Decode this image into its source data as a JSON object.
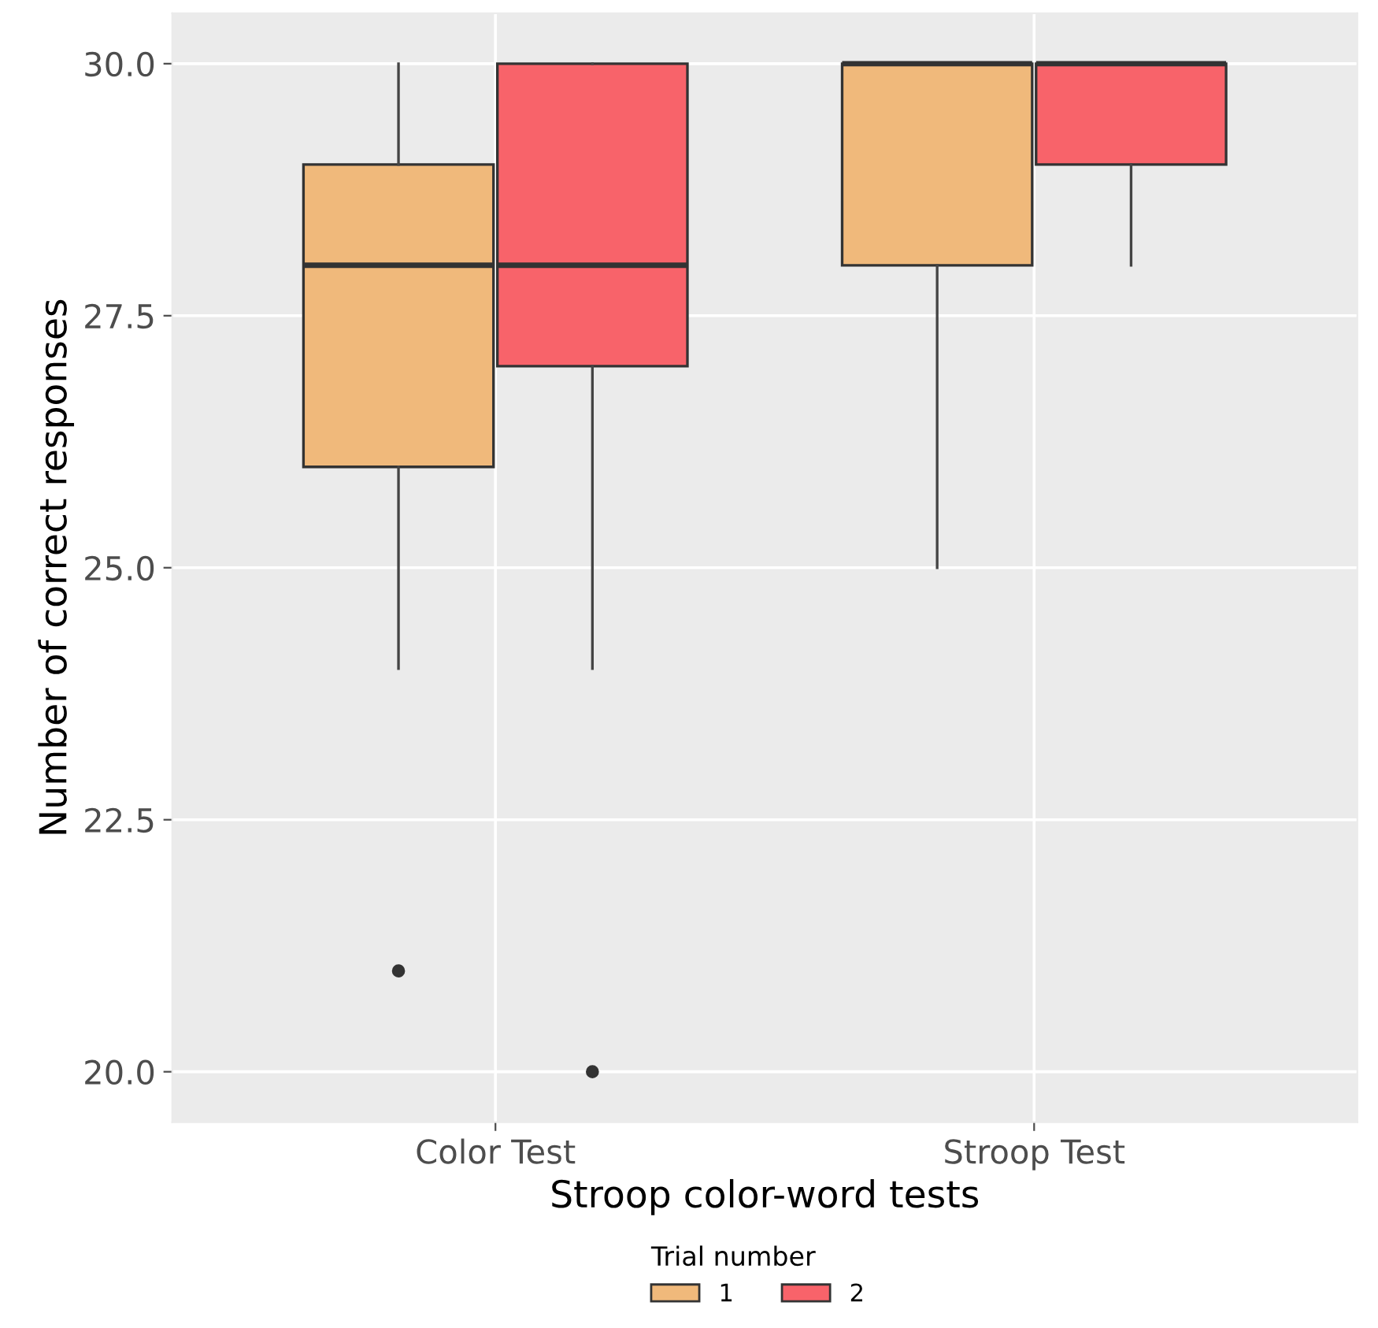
{
  "chart_data": {
    "type": "box",
    "xlabel": "Stroop color-word tests",
    "ylabel": "Number of correct responses",
    "legend_title": "Trial number",
    "categories": [
      "Color Test",
      "Stroop Test"
    ],
    "series": [
      {
        "name": "1",
        "color": "#f0b97b",
        "boxes": [
          {
            "low": 24,
            "q1": 26,
            "median": 28,
            "q3": 29,
            "high": 30,
            "outliers": [
              21
            ]
          },
          {
            "low": 25,
            "q1": 28,
            "median": 30,
            "q3": 30,
            "high": 30
          }
        ]
      },
      {
        "name": "2",
        "color": "#f8636a",
        "boxes": [
          {
            "low": 24,
            "q1": 27,
            "median": 28,
            "q3": 30,
            "high": 30,
            "outliers": [
              20
            ]
          },
          {
            "low": 28,
            "q1": 29,
            "median": 30,
            "q3": 30,
            "high": 30
          }
        ]
      }
    ],
    "ylim": [
      19.5,
      30.5
    ],
    "yticks": [
      {
        "value": 20,
        "label": "20.0"
      },
      {
        "value": 22.5,
        "label": "22.5"
      },
      {
        "value": 25,
        "label": "25.0"
      },
      {
        "value": 27.5,
        "label": "27.5"
      },
      {
        "value": 30,
        "label": "30.0"
      }
    ],
    "grid": true,
    "legend": "bottom"
  }
}
